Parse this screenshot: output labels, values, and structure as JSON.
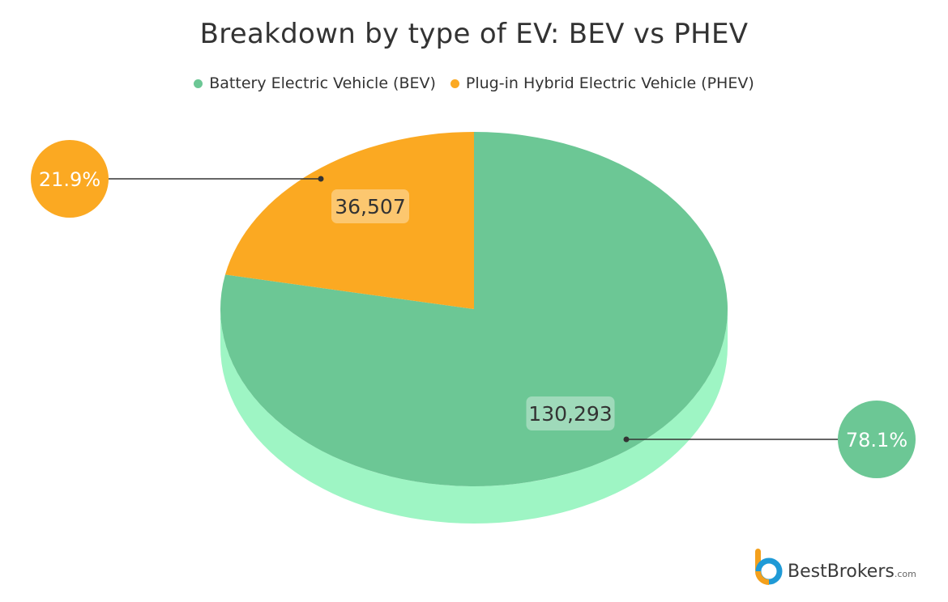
{
  "chart_data": {
    "type": "pie",
    "title": "Breakdown by type of EV: BEV vs PHEV",
    "series": [
      {
        "name": "Battery Electric Vehicle (BEV)",
        "value": 130293,
        "value_label": "130,293",
        "percent_label": "78.1%",
        "color": "#6cc795",
        "side_color": "#9ef5c4"
      },
      {
        "name": "Plug-in Hybrid Electric Vehicle (PHEV)",
        "value": 36507,
        "value_label": "36,507",
        "percent_label": "21.9%",
        "color": "#fba922",
        "side_color": "#e09419"
      }
    ],
    "legend_position": "top"
  },
  "branding": {
    "name": "BestBrokers",
    "suffix": ".com"
  }
}
